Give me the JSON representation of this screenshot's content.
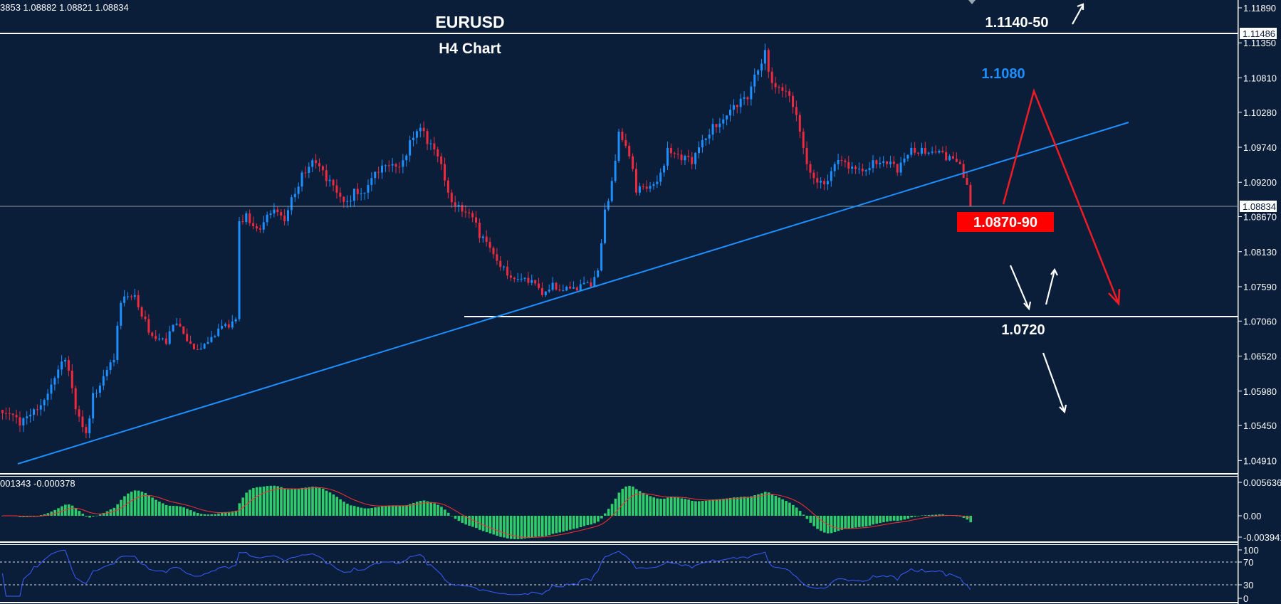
{
  "chart_data": {
    "type": "candlestick",
    "symbol_title": "EURUSD",
    "timeframe_title": "H4 Chart",
    "ohlc_readout": "3853 1.08882 1.08821 1.08834",
    "last_price": "1.08834",
    "last_price_value": 1.08834,
    "ylim": [
      1.0491,
      1.1189
    ],
    "price_ticks": [
      "1.11890",
      "1.11350",
      "1.10810",
      "1.10280",
      "1.09740",
      "1.09200",
      "1.08670",
      "1.08130",
      "1.07590",
      "1.07060",
      "1.06520",
      "1.05980",
      "1.05450",
      "1.04910"
    ],
    "bar_count": 279,
    "anchor_closes": [
      [
        0,
        1.0564
      ],
      [
        5,
        1.0545
      ],
      [
        9,
        1.057
      ],
      [
        14,
        1.0608
      ],
      [
        18,
        1.0646
      ],
      [
        21,
        1.057
      ],
      [
        24,
        1.0533
      ],
      [
        26,
        1.0595
      ],
      [
        29,
        1.0621
      ],
      [
        32,
        1.0646
      ],
      [
        34,
        1.0734
      ],
      [
        38,
        1.0746
      ],
      [
        41,
        1.0709
      ],
      [
        43,
        1.0683
      ],
      [
        47,
        1.0671
      ],
      [
        50,
        1.0702
      ],
      [
        54,
        1.0671
      ],
      [
        58,
        1.0671
      ],
      [
        61,
        1.0683
      ],
      [
        65,
        1.0696
      ],
      [
        67,
        1.0709
      ],
      [
        68,
        1.086
      ],
      [
        70,
        1.0872
      ],
      [
        74,
        1.0847
      ],
      [
        77,
        1.0872
      ],
      [
        81,
        1.086
      ],
      [
        83,
        1.0897
      ],
      [
        86,
        1.0935
      ],
      [
        89,
        1.0954
      ],
      [
        93,
        1.0922
      ],
      [
        96,
        1.0904
      ],
      [
        99,
        1.0891
      ],
      [
        101,
        1.091
      ],
      [
        104,
        1.0904
      ],
      [
        108,
        1.0935
      ],
      [
        112,
        1.0948
      ],
      [
        115,
        1.0954
      ],
      [
        117,
        1.0985
      ],
      [
        120,
        1.1004
      ],
      [
        122,
        1.0979
      ],
      [
        126,
        1.0948
      ],
      [
        128,
        1.0904
      ],
      [
        131,
        1.0885
      ],
      [
        135,
        1.0866
      ],
      [
        137,
        1.0834
      ],
      [
        141,
        1.0809
      ],
      [
        144,
        1.079
      ],
      [
        148,
        1.0771
      ],
      [
        151,
        1.0765
      ],
      [
        155,
        1.0746
      ],
      [
        158,
        1.0765
      ],
      [
        162,
        1.0759
      ],
      [
        165,
        1.0753
      ],
      [
        169,
        1.0759
      ],
      [
        171,
        1.0784
      ],
      [
        173,
        1.0878
      ],
      [
        175,
        1.0922
      ],
      [
        177,
        1.0998
      ],
      [
        180,
        1.096
      ],
      [
        182,
        1.0904
      ],
      [
        185,
        1.091
      ],
      [
        189,
        1.0935
      ],
      [
        191,
        1.0973
      ],
      [
        195,
        1.0954
      ],
      [
        198,
        1.0948
      ],
      [
        201,
        1.0985
      ],
      [
        204,
        1.101
      ],
      [
        208,
        1.1023
      ],
      [
        211,
        1.1036
      ],
      [
        214,
        1.1048
      ],
      [
        216,
        1.1086
      ],
      [
        219,
        1.1124
      ],
      [
        221,
        1.1073
      ],
      [
        224,
        1.1061
      ],
      [
        227,
        1.1036
      ],
      [
        229,
        1.0998
      ],
      [
        231,
        1.0948
      ],
      [
        235,
        1.0922
      ],
      [
        237,
        1.0922
      ],
      [
        239,
        1.0948
      ],
      [
        243,
        1.0941
      ],
      [
        246,
        1.0941
      ],
      [
        250,
        1.0954
      ],
      [
        254,
        1.0948
      ],
      [
        257,
        1.0935
      ],
      [
        261,
        1.0973
      ],
      [
        264,
        1.0973
      ],
      [
        268,
        1.0966
      ],
      [
        271,
        1.0954
      ],
      [
        275,
        1.0948
      ],
      [
        277,
        1.0916
      ],
      [
        278,
        1.08834
      ]
    ],
    "levels": {
      "resistance_top": {
        "value": 1.11486,
        "label": "1.11486"
      },
      "support": {
        "value": 1.072,
        "label": "1.0720"
      }
    },
    "annotations": {
      "target_up": "1.1140-50",
      "pullback": "1.1080",
      "resistance_zone": "1.0870-90"
    },
    "macd": {
      "readout": "001343 -0.000378",
      "ticks": [
        "0.005636",
        "0.00",
        "-0.003941"
      ],
      "range": [
        -0.003941,
        0.005636
      ]
    },
    "rsi": {
      "ticks": [
        "100",
        "70",
        "30",
        "0"
      ],
      "levels": [
        70,
        30
      ],
      "range": [
        0,
        100
      ]
    },
    "colors": {
      "background": "#0a1e3a",
      "bull": "#1e8fff",
      "bear": "#ee2a3e",
      "trendline": "#1e8fff",
      "macd_hist": "#2ecc6a",
      "signal": "#ff3030",
      "rsi": "#3a5cff",
      "zone": "#ff0000"
    }
  }
}
